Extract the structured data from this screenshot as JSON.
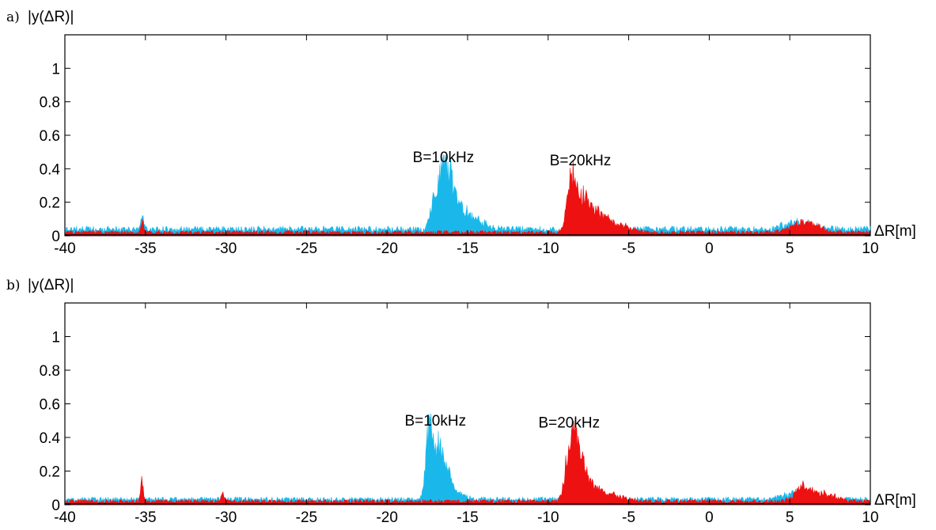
{
  "chart_data": [
    {
      "type": "area",
      "panel_label": "a)",
      "ylabel": "|y(ΔR)|",
      "xlabel": "ΔR[m]",
      "xlim": [
        -40,
        10
      ],
      "ylim": [
        0,
        1.2
      ],
      "x_ticks": [
        -40,
        -35,
        -30,
        -25,
        -20,
        -15,
        -10,
        -5,
        0,
        5,
        10
      ],
      "y_ticks": [
        0,
        0.2,
        0.4,
        0.6,
        0.8,
        1
      ],
      "y_tick_labels": [
        "0",
        "0.2",
        "0.4",
        "0.6",
        "0.8",
        "1"
      ],
      "grid": false,
      "series": [
        {
          "color": "#1ab8ea",
          "baseline": 0.03,
          "noise": 0.02,
          "seed": 7,
          "peaks": [
            [
              -35.2,
              0.1,
              0.1
            ],
            [
              -17.1,
              0.22,
              0.2
            ],
            [
              -16.6,
              0.4,
              0.25
            ],
            [
              -16.1,
              0.37,
              0.25
            ],
            [
              -15.5,
              0.17,
              0.4
            ],
            [
              -14.5,
              0.07,
              0.6
            ],
            [
              5.5,
              0.06,
              0.8
            ]
          ]
        },
        {
          "color": "#ee1111",
          "baseline": 0.015,
          "noise": 0.012,
          "seed": 13,
          "peaks": [
            [
              -35.2,
              0.09,
              0.08
            ],
            [
              -8.5,
              0.4,
              0.3
            ],
            [
              -7.8,
              0.25,
              0.4
            ],
            [
              -6.8,
              0.13,
              0.6
            ],
            [
              -5.5,
              0.05,
              0.8
            ],
            [
              5.5,
              0.07,
              0.6
            ],
            [
              6.5,
              0.05,
              0.6
            ]
          ]
        }
      ],
      "annotations": [
        {
          "text": "B=10kHz",
          "x": -16.5,
          "y": 0.44
        },
        {
          "text": "B=20kHz",
          "x": -8.0,
          "y": 0.42
        }
      ]
    },
    {
      "type": "area",
      "panel_label": "b)",
      "ylabel": "|y(ΔR)|",
      "xlabel": "ΔR[m]",
      "xlim": [
        -40,
        10
      ],
      "ylim": [
        0,
        1.2
      ],
      "x_ticks": [
        -40,
        -35,
        -30,
        -25,
        -20,
        -15,
        -10,
        -5,
        0,
        5,
        10
      ],
      "y_ticks": [
        0,
        0.2,
        0.4,
        0.6,
        0.8,
        1
      ],
      "y_tick_labels": [
        "0",
        "0.2",
        "0.4",
        "0.6",
        "0.8",
        "1"
      ],
      "grid": false,
      "series": [
        {
          "color": "#1ab8ea",
          "baseline": 0.025,
          "noise": 0.015,
          "seed": 21,
          "peaks": [
            [
              -17.4,
              0.45,
              0.2
            ],
            [
              -16.9,
              0.35,
              0.35
            ],
            [
              -16.3,
              0.15,
              0.35
            ],
            [
              -16.0,
              0.06,
              0.6
            ],
            [
              5.5,
              0.06,
              0.8
            ]
          ]
        },
        {
          "color": "#ee1111",
          "baseline": 0.015,
          "noise": 0.012,
          "seed": 29,
          "peaks": [
            [
              -35.2,
              0.18,
              0.08
            ],
            [
              -30.2,
              0.06,
              0.1
            ],
            [
              -8.6,
              0.45,
              0.3
            ],
            [
              -8.1,
              0.3,
              0.35
            ],
            [
              -7.3,
              0.12,
              0.5
            ],
            [
              -6.0,
              0.05,
              0.8
            ],
            [
              5.8,
              0.1,
              0.5
            ],
            [
              7.0,
              0.06,
              0.8
            ]
          ]
        }
      ],
      "annotations": [
        {
          "text": "B=10kHz",
          "x": -17.0,
          "y": 0.47
        },
        {
          "text": "B=20kHz",
          "x": -8.7,
          "y": 0.46
        }
      ]
    }
  ]
}
